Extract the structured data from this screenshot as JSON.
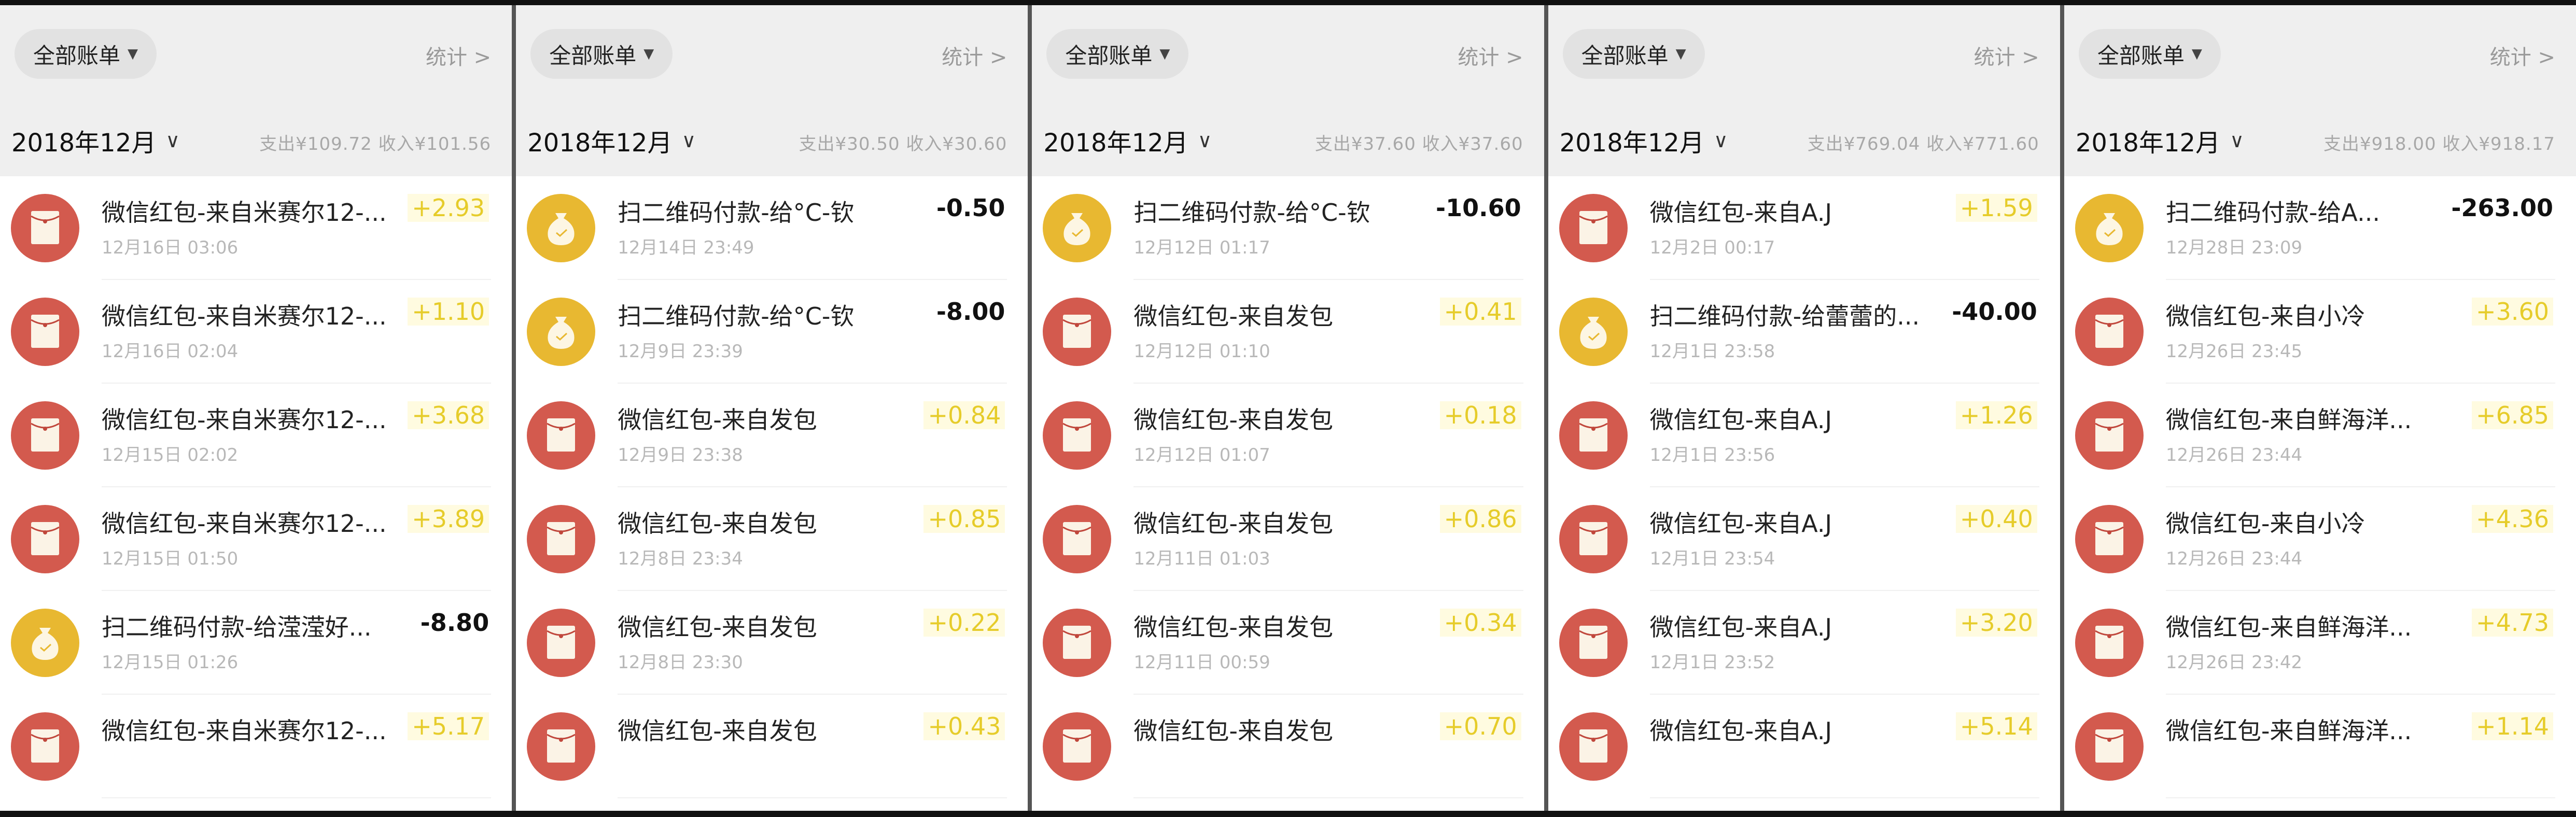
{
  "colors": {
    "red_icon": "#d35a4e",
    "yellow_icon": "#e8b831",
    "income": "#e6cc2a",
    "expense": "#111111"
  },
  "panels": [
    {
      "filter_label": "全部账单",
      "stats_label": "统计 >",
      "month": "2018年12月",
      "summary": "支出¥109.72 收入¥101.56",
      "rows": [
        {
          "icon": "red-packet-icon",
          "title": "微信红包-来自米赛尔12-...",
          "date": "12月16日 03:06",
          "amount": "+2.93",
          "type": "pos"
        },
        {
          "icon": "red-packet-icon",
          "title": "微信红包-来自米赛尔12-...",
          "date": "12月16日 02:04",
          "amount": "+1.10",
          "type": "pos"
        },
        {
          "icon": "red-packet-icon",
          "title": "微信红包-来自米赛尔12-...",
          "date": "12月15日 02:02",
          "amount": "+3.68",
          "type": "pos"
        },
        {
          "icon": "red-packet-icon",
          "title": "微信红包-来自米赛尔12-...",
          "date": "12月15日 01:50",
          "amount": "+3.89",
          "type": "pos"
        },
        {
          "icon": "money-bag-icon",
          "title": "扫二维码付款-给滢滢好...",
          "date": "12月15日 01:26",
          "amount": "-8.80",
          "type": "neg"
        },
        {
          "icon": "red-packet-icon",
          "title": "微信红包-来自米赛尔12-...",
          "date": "",
          "amount": "+5.17",
          "type": "pos"
        }
      ]
    },
    {
      "filter_label": "全部账单",
      "stats_label": "统计 >",
      "month": "2018年12月",
      "summary": "支出¥30.50 收入¥30.60",
      "rows": [
        {
          "icon": "money-bag-icon",
          "title": "扫二维码付款-给°C-钦",
          "date": "12月14日 23:49",
          "amount": "-0.50",
          "type": "neg"
        },
        {
          "icon": "money-bag-icon",
          "title": "扫二维码付款-给°C-钦",
          "date": "12月9日 23:39",
          "amount": "-8.00",
          "type": "neg"
        },
        {
          "icon": "red-packet-icon",
          "title": "微信红包-来自发包",
          "date": "12月9日 23:38",
          "amount": "+0.84",
          "type": "pos"
        },
        {
          "icon": "red-packet-icon",
          "title": "微信红包-来自发包",
          "date": "12月8日 23:34",
          "amount": "+0.85",
          "type": "pos"
        },
        {
          "icon": "red-packet-icon",
          "title": "微信红包-来自发包",
          "date": "12月8日 23:30",
          "amount": "+0.22",
          "type": "pos"
        },
        {
          "icon": "red-packet-icon",
          "title": "微信红包-来自发包",
          "date": "",
          "amount": "+0.43",
          "type": "pos"
        }
      ]
    },
    {
      "filter_label": "全部账单",
      "stats_label": "统计 >",
      "month": "2018年12月",
      "summary": "支出¥37.60 收入¥37.60",
      "rows": [
        {
          "icon": "money-bag-icon",
          "title": "扫二维码付款-给°C-钦",
          "date": "12月12日 01:17",
          "amount": "-10.60",
          "type": "neg"
        },
        {
          "icon": "red-packet-icon",
          "title": "微信红包-来自发包",
          "date": "12月12日 01:10",
          "amount": "+0.41",
          "type": "pos"
        },
        {
          "icon": "red-packet-icon",
          "title": "微信红包-来自发包",
          "date": "12月12日 01:07",
          "amount": "+0.18",
          "type": "pos"
        },
        {
          "icon": "red-packet-icon",
          "title": "微信红包-来自发包",
          "date": "12月11日 01:03",
          "amount": "+0.86",
          "type": "pos"
        },
        {
          "icon": "red-packet-icon",
          "title": "微信红包-来自发包",
          "date": "12月11日 00:59",
          "amount": "+0.34",
          "type": "pos"
        },
        {
          "icon": "red-packet-icon",
          "title": "微信红包-来自发包",
          "date": "",
          "amount": "+0.70",
          "type": "pos"
        }
      ]
    },
    {
      "filter_label": "全部账单",
      "stats_label": "统计 >",
      "month": "2018年12月",
      "summary": "支出¥769.04 收入¥771.60",
      "rows": [
        {
          "icon": "red-packet-icon",
          "title": "微信红包-来自A.J",
          "date": "12月2日 00:17",
          "amount": "+1.59",
          "type": "pos"
        },
        {
          "icon": "money-bag-icon",
          "title": "扫二维码付款-给蕾蕾的...",
          "date": "12月1日 23:58",
          "amount": "-40.00",
          "type": "neg"
        },
        {
          "icon": "red-packet-icon",
          "title": "微信红包-来自A.J",
          "date": "12月1日 23:56",
          "amount": "+1.26",
          "type": "pos"
        },
        {
          "icon": "red-packet-icon",
          "title": "微信红包-来自A.J",
          "date": "12月1日 23:54",
          "amount": "+0.40",
          "type": "pos"
        },
        {
          "icon": "red-packet-icon",
          "title": "微信红包-来自A.J",
          "date": "12月1日 23:52",
          "amount": "+3.20",
          "type": "pos"
        },
        {
          "icon": "red-packet-icon",
          "title": "微信红包-来自A.J",
          "date": "",
          "amount": "+5.14",
          "type": "pos"
        }
      ]
    },
    {
      "filter_label": "全部账单",
      "stats_label": "统计 >",
      "month": "2018年12月",
      "summary": "支出¥918.00 收入¥918.17",
      "rows": [
        {
          "icon": "money-bag-icon",
          "title": "扫二维码付款-给A...",
          "date": "12月28日 23:09",
          "amount": "-263.00",
          "type": "neg"
        },
        {
          "icon": "red-packet-icon",
          "title": "微信红包-来自小冷",
          "date": "12月26日 23:45",
          "amount": "+3.60",
          "type": "pos"
        },
        {
          "icon": "red-packet-icon",
          "title": "微信红包-来自鲜海洋...",
          "date": "12月26日 23:44",
          "amount": "+6.85",
          "type": "pos"
        },
        {
          "icon": "red-packet-icon",
          "title": "微信红包-来自小冷",
          "date": "12月26日 23:44",
          "amount": "+4.36",
          "type": "pos"
        },
        {
          "icon": "red-packet-icon",
          "title": "微信红包-来自鲜海洋...",
          "date": "12月26日 23:42",
          "amount": "+4.73",
          "type": "pos"
        },
        {
          "icon": "red-packet-icon",
          "title": "微信红包-来自鲜海洋...",
          "date": "",
          "amount": "+1.14",
          "type": "pos"
        }
      ]
    }
  ]
}
